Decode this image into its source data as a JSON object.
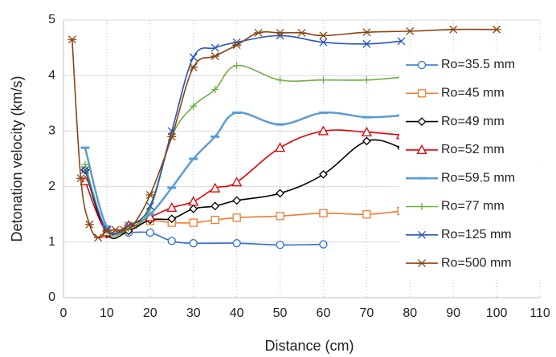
{
  "chart_data": {
    "type": "line",
    "xlabel": "Distance (cm)",
    "ylabel": "Detonation velocity (km/s)",
    "xlim": [
      0,
      110
    ],
    "xticks": [
      0,
      10,
      20,
      30,
      40,
      50,
      60,
      70,
      80,
      90,
      100,
      110
    ],
    "ylim": [
      0,
      5
    ],
    "yticks": [
      0,
      1,
      2,
      3,
      4,
      5
    ],
    "grid": true,
    "legend": "right",
    "series": [
      {
        "name": "Ro=35.5 mm",
        "color": "#2f6fd0",
        "marker": "circle",
        "x": [
          10,
          15,
          20,
          25,
          30,
          40,
          50,
          60
        ],
        "values": [
          1.15,
          1.17,
          1.17,
          1.02,
          0.98,
          0.98,
          0.95,
          0.96
        ]
      },
      {
        "name": "Ro=45 mm",
        "color": "#ed7d31",
        "marker": "square",
        "x": [
          10,
          15,
          20,
          25,
          30,
          35,
          40,
          50,
          60,
          70,
          78
        ],
        "values": [
          1.15,
          1.25,
          1.38,
          1.35,
          1.35,
          1.4,
          1.44,
          1.47,
          1.52,
          1.5,
          1.56
        ]
      },
      {
        "name": "Ro=49 mm",
        "color": "#000000",
        "marker": "diamond",
        "x": [
          5,
          10,
          15,
          20,
          25,
          30,
          35,
          40,
          50,
          60,
          70,
          78
        ],
        "values": [
          2.3,
          1.15,
          1.2,
          1.4,
          1.42,
          1.6,
          1.65,
          1.75,
          1.88,
          2.22,
          2.82,
          2.7
        ]
      },
      {
        "name": "Ro=52 mm",
        "color": "#e00000",
        "marker": "triangle",
        "x": [
          5,
          10,
          15,
          20,
          25,
          30,
          35,
          40,
          50,
          60,
          70,
          78
        ],
        "values": [
          2.1,
          1.18,
          1.3,
          1.45,
          1.62,
          1.73,
          1.97,
          2.08,
          2.7,
          3.0,
          2.98,
          2.93
        ]
      },
      {
        "name": "Ro=59.5 mm",
        "color": "#5b9bd5",
        "marker": "dash",
        "x": [
          5,
          10,
          15,
          20,
          25,
          30,
          35,
          40,
          50,
          60,
          70,
          78
        ],
        "values": [
          2.7,
          1.28,
          1.25,
          1.5,
          1.98,
          2.5,
          2.9,
          3.33,
          3.12,
          3.33,
          3.25,
          3.28
        ]
      },
      {
        "name": "Ro=77 mm",
        "color": "#70ad47",
        "marker": "plus",
        "x": [
          5,
          10,
          15,
          20,
          25,
          30,
          35,
          40,
          50,
          60,
          70,
          78
        ],
        "values": [
          2.4,
          1.2,
          1.25,
          1.6,
          2.9,
          3.45,
          3.75,
          4.18,
          3.92,
          3.92,
          3.92,
          3.97
        ]
      },
      {
        "name": "Ro=125 mm",
        "color": "#2455b8",
        "marker": "x",
        "x": [
          5,
          10,
          15,
          20,
          25,
          30,
          35,
          40,
          50,
          60,
          70,
          78
        ],
        "values": [
          2.3,
          1.22,
          1.3,
          1.65,
          3.0,
          4.33,
          4.5,
          4.6,
          4.72,
          4.6,
          4.57,
          4.62
        ]
      },
      {
        "name": "Ro=500 mm",
        "color": "#8b4513",
        "marker": "star",
        "x": [
          2,
          4,
          6,
          8,
          10,
          12,
          14,
          16,
          20,
          25,
          30,
          35,
          40,
          45,
          50,
          55,
          60,
          70,
          80,
          90,
          100
        ],
        "values": [
          4.65,
          2.15,
          1.32,
          1.08,
          1.2,
          1.22,
          1.22,
          1.3,
          1.85,
          2.9,
          4.15,
          4.35,
          4.55,
          4.77,
          4.77,
          4.77,
          4.72,
          4.78,
          4.8,
          4.83,
          4.83
        ]
      }
    ]
  }
}
